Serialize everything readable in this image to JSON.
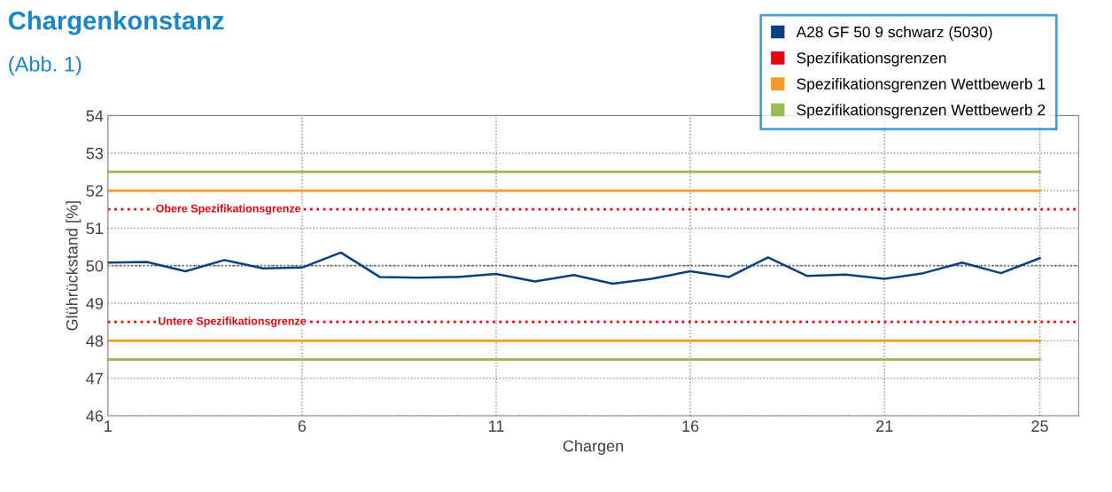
{
  "chart_data": {
    "type": "line",
    "title": "Chargenkonstanz",
    "subtitle": "(Abb. 1)",
    "xlabel": "Chargen",
    "ylabel": "Glührückstand [%]",
    "x": [
      1,
      2,
      3,
      4,
      5,
      6,
      7,
      8,
      9,
      10,
      11,
      12,
      13,
      14,
      15,
      16,
      17,
      18,
      19,
      20,
      21,
      22,
      23,
      24,
      25
    ],
    "series": [
      {
        "name": "A28 GF 50 9 schwarz (5030)",
        "color": "#0d3f7f",
        "values": [
          50.08,
          50.1,
          49.85,
          50.15,
          49.93,
          49.95,
          50.35,
          49.7,
          49.68,
          49.7,
          49.78,
          49.58,
          49.75,
          49.52,
          49.65,
          49.85,
          49.7,
          50.22,
          49.73,
          49.76,
          49.65,
          49.8,
          50.08,
          49.8,
          50.2
        ]
      },
      {
        "name": "Spezifikationsgrenzen",
        "color": "#e30613",
        "line_style": "dotted",
        "x": [
          1,
          26
        ],
        "values": [
          51.5,
          51.5
        ]
      },
      {
        "color": "#e30613",
        "line_style": "dotted",
        "x": [
          1,
          26
        ],
        "values": [
          48.5,
          48.5
        ]
      },
      {
        "name": "Spezifikationsgrenzen Wettbewerb 1",
        "color": "#f39a2c",
        "x": [
          1,
          25
        ],
        "values": [
          52,
          52
        ]
      },
      {
        "color": "#f39a2c",
        "x": [
          1,
          25
        ],
        "values": [
          48,
          48
        ]
      },
      {
        "name": "Spezifikationsgrenzen Wettbewerb 2",
        "color": "#9bbb59",
        "x": [
          1,
          25
        ],
        "values": [
          52.5,
          52.5
        ]
      },
      {
        "color": "#9bbb59",
        "x": [
          1,
          25
        ],
        "values": [
          47.5,
          47.5
        ]
      }
    ],
    "ref_lines": [
      {
        "axis": "y",
        "value": 50,
        "color": "#404040",
        "line_style": "dotted"
      }
    ],
    "annotations": [
      {
        "text": "Obere Spezifikationsgrenze",
        "x": 4.1,
        "y": 51.5
      },
      {
        "text": "Untere Spezifikationsgrenze",
        "x": 4.2,
        "y": 48.5
      }
    ],
    "xlim": [
      1,
      26
    ],
    "xticks": [
      1,
      6,
      11,
      16,
      21,
      25
    ],
    "ylim": [
      46,
      54
    ],
    "yticks": [
      46,
      47,
      48,
      49,
      50,
      51,
      52,
      53,
      54
    ],
    "grid": true,
    "legend": "top right",
    "marker": "none",
    "line_style": "solid"
  }
}
